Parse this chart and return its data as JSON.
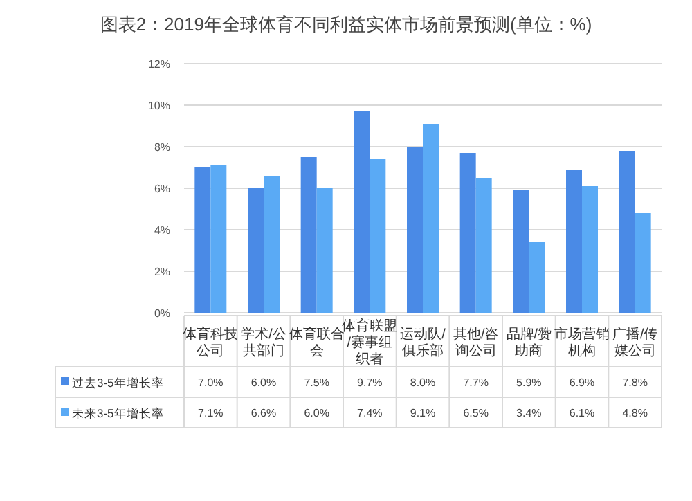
{
  "chart_data": {
    "type": "bar",
    "title": "图表2：2019年全球体育不同利益实体市场前景预测(单位：%)",
    "categories": [
      "体育科技公司",
      "学术/公共部门",
      "体育联合会",
      "体育联盟/赛事组织者",
      "运动队/俱乐部",
      "其他/咨询公司",
      "品牌/赞助商",
      "市场营销机构",
      "广播/传媒公司"
    ],
    "series": [
      {
        "name": "过去3-5年增长率",
        "color": "#4a8ae6",
        "values": [
          7.0,
          6.0,
          7.5,
          9.7,
          8.0,
          7.7,
          5.9,
          6.9,
          7.8
        ],
        "value_labels": [
          "7.0%",
          "6.0%",
          "7.5%",
          "9.7%",
          "8.0%",
          "7.7%",
          "5.9%",
          "6.9%",
          "7.8%"
        ]
      },
      {
        "name": "未来3-5年增长率",
        "color": "#5aaaf5",
        "values": [
          7.1,
          6.6,
          6.0,
          7.4,
          9.1,
          6.5,
          3.4,
          6.1,
          4.8
        ],
        "value_labels": [
          "7.1%",
          "6.6%",
          "6.0%",
          "7.4%",
          "9.1%",
          "6.5%",
          "3.4%",
          "6.1%",
          "4.8%"
        ]
      }
    ],
    "ylim": [
      0,
      12
    ],
    "yticks": [
      {
        "value": 0,
        "label": "0%"
      },
      {
        "value": 2,
        "label": "2%"
      },
      {
        "value": 4,
        "label": "4%"
      },
      {
        "value": 6,
        "label": "6%"
      },
      {
        "value": 8,
        "label": "8%"
      },
      {
        "value": 10,
        "label": "10%"
      },
      {
        "value": 12,
        "label": "12%"
      }
    ],
    "grid": "y",
    "legend": "bottom"
  }
}
